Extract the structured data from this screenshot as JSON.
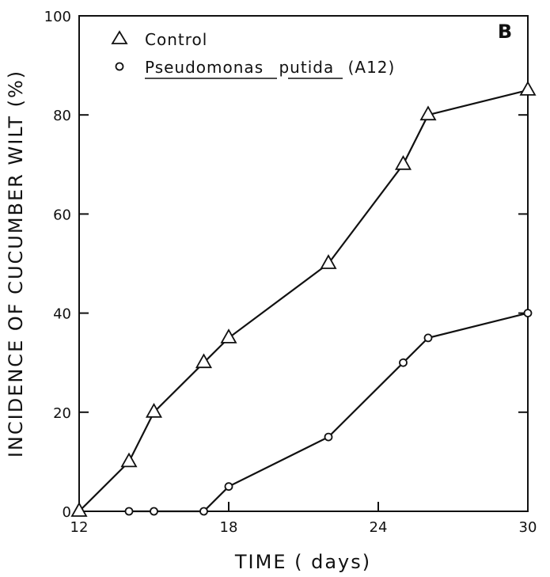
{
  "chart_data": {
    "type": "line",
    "panel_label": "B",
    "xlabel": "TIME ( days)",
    "ylabel": "INCIDENCE OF CUCUMBER WILT (%)",
    "xlim": [
      12,
      30
    ],
    "ylim": [
      0,
      100
    ],
    "x_ticks": [
      12,
      18,
      24,
      30
    ],
    "y_ticks": [
      0,
      20,
      40,
      60,
      80,
      100
    ],
    "grid": false,
    "legend_position": "top-left",
    "series": [
      {
        "name": "Control",
        "marker": "triangle",
        "x": [
          12,
          14,
          15,
          17,
          18,
          22,
          25,
          26,
          30
        ],
        "y": [
          0,
          10,
          20,
          30,
          35,
          50,
          70,
          80,
          85
        ]
      },
      {
        "name": "Pseudomonas putida (A12)",
        "legend_parts": [
          "Pseudomonas",
          "putida",
          "(A12)"
        ],
        "marker": "circle",
        "x": [
          14,
          15,
          17,
          18,
          22,
          25,
          26,
          30
        ],
        "y": [
          0,
          0,
          0,
          5,
          15,
          30,
          35,
          40
        ]
      }
    ]
  }
}
